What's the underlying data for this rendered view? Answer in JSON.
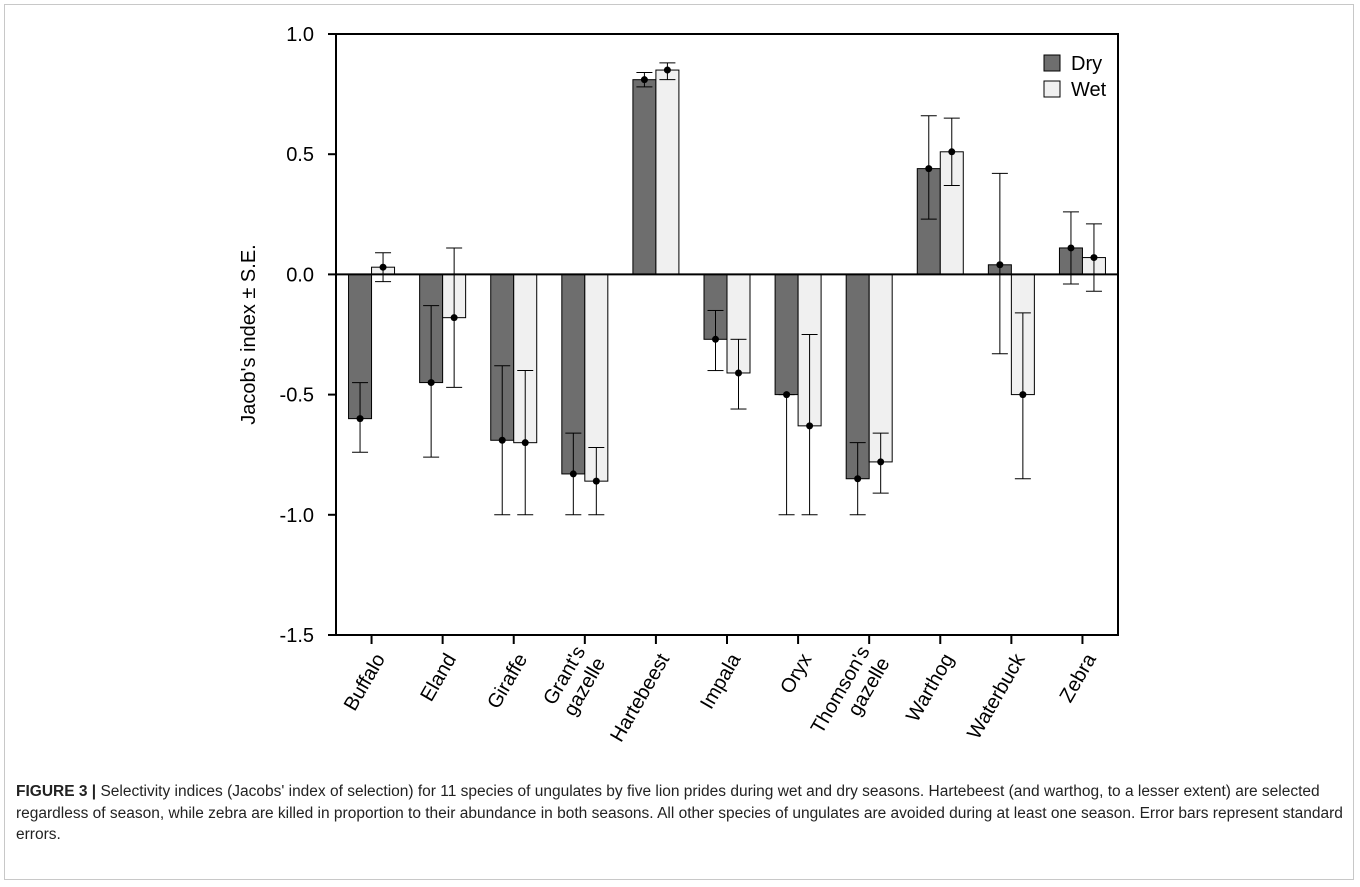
{
  "chart_data": {
    "type": "bar",
    "ylabel": "Jacob's index ± S.E.",
    "ylim": [
      -1.5,
      1.0
    ],
    "yticks": [
      "1.0",
      "0.5",
      "0.0",
      "-0.5",
      "-1.0",
      "-1.5"
    ],
    "ytick_values": [
      1.0,
      0.5,
      0.0,
      -0.5,
      -1.0,
      -1.5
    ],
    "categories": [
      "Buffalo",
      "Eland",
      "Giraffe",
      "Grant's\ngazelle",
      "Hartebeest",
      "Impala",
      "Oryx",
      "Thomson's\ngazelle",
      "Warthog",
      "Waterbuck",
      "Zebra"
    ],
    "legend_position": "top-right",
    "grid": false,
    "series": [
      {
        "name": "Dry",
        "color": "#6e6e6e",
        "values": [
          -0.6,
          -0.45,
          -0.69,
          -0.83,
          0.81,
          -0.27,
          -0.5,
          -0.85,
          0.44,
          0.04,
          0.11
        ],
        "err_low": [
          -0.74,
          -0.76,
          -1.0,
          -1.0,
          0.78,
          -0.4,
          -1.0,
          -1.0,
          0.23,
          -0.33,
          -0.04
        ],
        "err_high": [
          -0.45,
          -0.13,
          -0.38,
          -0.66,
          0.84,
          -0.15,
          -0.5,
          -0.7,
          0.66,
          0.42,
          0.26
        ]
      },
      {
        "name": "Wet",
        "color": "#f0f0f0",
        "values": [
          0.03,
          -0.18,
          -0.7,
          -0.86,
          0.85,
          -0.41,
          -0.63,
          -0.78,
          0.51,
          -0.5,
          0.07
        ],
        "err_low": [
          -0.03,
          -0.47,
          -1.0,
          -1.0,
          0.81,
          -0.56,
          -1.0,
          -0.91,
          0.37,
          -0.85,
          -0.07
        ],
        "err_high": [
          0.09,
          0.11,
          -0.4,
          -0.72,
          0.88,
          -0.27,
          -0.25,
          -0.66,
          0.65,
          -0.16,
          0.21
        ]
      }
    ]
  },
  "caption": {
    "label": "FIGURE 3 |",
    "text": " Selectivity indices (Jacobs' index of selection) for 11 species of ungulates by five lion prides during wet and dry seasons. Hartebeest (and warthog, to a lesser extent) are selected regardless of season, while zebra are killed in proportion to their abundance in both seasons. All other species of ungulates are avoided during at least one season. Error bars represent standard errors."
  }
}
